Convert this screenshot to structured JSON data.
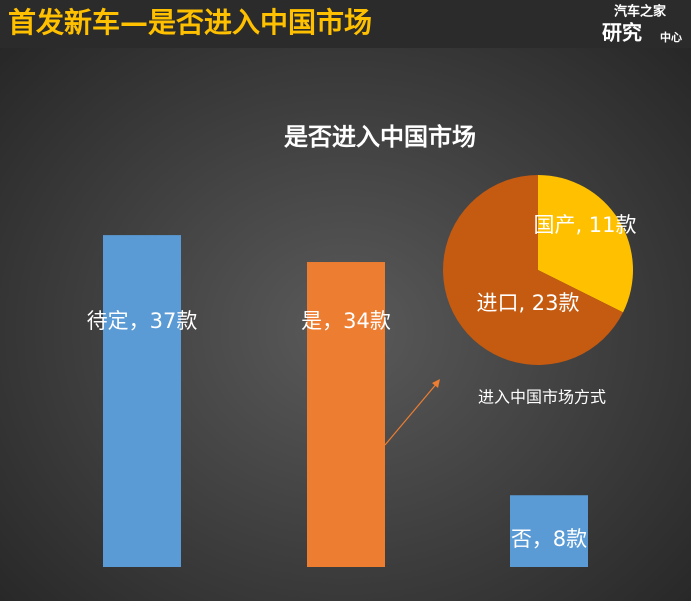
{
  "header": {
    "title": "首发新车—是否进入中国市场",
    "logo": [
      "汽车之家",
      "研究",
      "中心"
    ]
  },
  "chart_data": [
    {
      "type": "bar",
      "title": "是否进入中国市场",
      "values": [
        37,
        34,
        8
      ],
      "value_labels": [
        "待定，37款",
        "是，34款",
        "否，8款"
      ],
      "colors": [
        "#5b9bd5",
        "#ed7d31",
        "#5b9bd5"
      ]
    },
    {
      "type": "pie",
      "annotation": "进入中国市场方式",
      "values": [
        11,
        23
      ],
      "value_labels": [
        "国产, 11款",
        "进口, 23款"
      ],
      "colors": [
        "#ffc000",
        "#c55a11"
      ]
    }
  ]
}
